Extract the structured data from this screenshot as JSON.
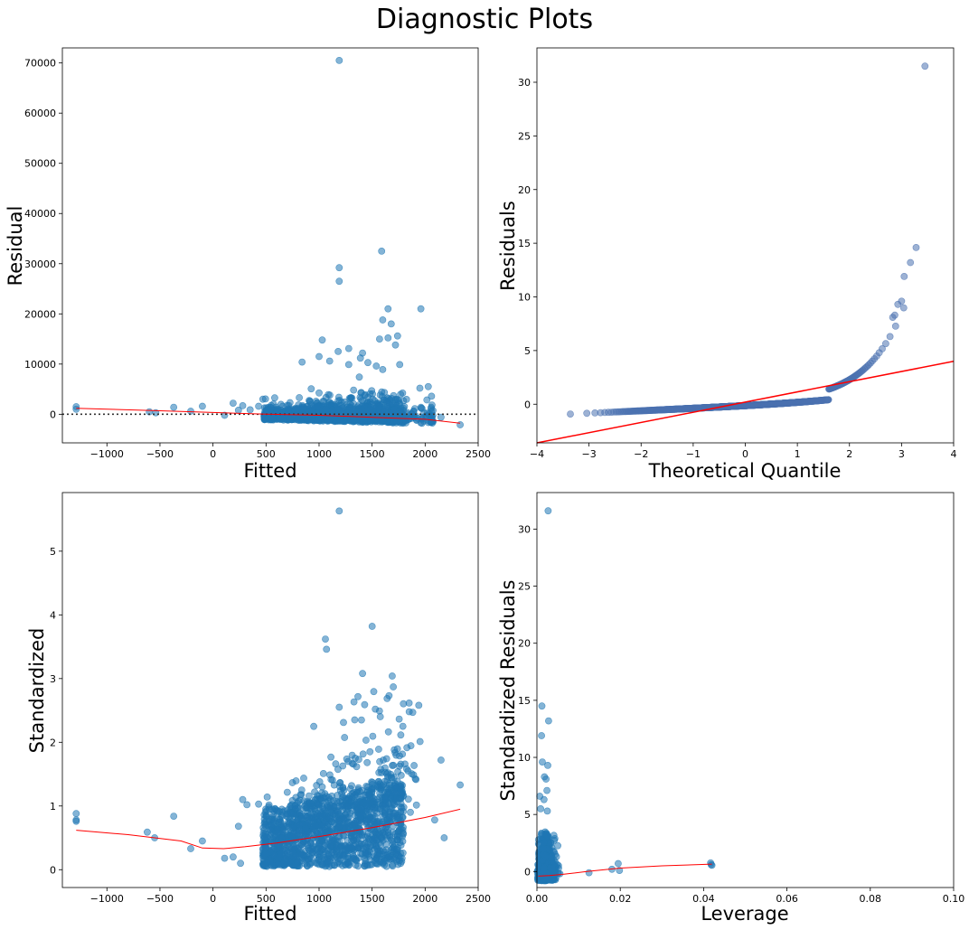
{
  "title": "Diagnostic Plots",
  "colors": {
    "points": "#1f77b4",
    "qq_points": "#4c72b0",
    "fit_line": "#ff0000",
    "zero_line": "#333333"
  },
  "chart_data": [
    {
      "id": "residuals-vs-fitted",
      "type": "scatter",
      "xlabel": "Fitted",
      "ylabel": "Residual",
      "xlim": [
        -1420,
        2500
      ],
      "ylim": [
        -5700,
        73000
      ],
      "xticks": [
        -1000,
        -500,
        0,
        500,
        1000,
        1500,
        2000,
        2500
      ],
      "yticks": [
        0,
        10000,
        20000,
        30000,
        40000,
        50000,
        60000,
        70000
      ],
      "reference_line": {
        "style": "dotted",
        "y": 0
      },
      "lowess": [
        [
          -1290,
          1200
        ],
        [
          -500,
          700
        ],
        [
          0,
          350
        ],
        [
          500,
          0
        ],
        [
          1000,
          -200
        ],
        [
          1500,
          -600
        ],
        [
          2000,
          -1000
        ],
        [
          2330,
          -1800
        ]
      ],
      "outliers": [
        [
          1190,
          70500
        ],
        [
          1590,
          32500
        ],
        [
          1190,
          29200
        ],
        [
          1190,
          26500
        ],
        [
          1650,
          21000
        ],
        [
          1960,
          21000
        ],
        [
          1600,
          18800
        ],
        [
          1680,
          18000
        ],
        [
          1650,
          15200
        ],
        [
          1740,
          15600
        ],
        [
          1030,
          14800
        ],
        [
          1570,
          15000
        ],
        [
          1280,
          13100
        ],
        [
          1720,
          13800
        ],
        [
          1410,
          12200
        ],
        [
          1180,
          12500
        ],
        [
          1000,
          11500
        ],
        [
          1390,
          11200
        ],
        [
          1100,
          10600
        ],
        [
          1460,
          10300
        ],
        [
          840,
          10400
        ],
        [
          1540,
          9600
        ],
        [
          1760,
          9900
        ],
        [
          1600,
          8900
        ],
        [
          1280,
          9900
        ]
      ],
      "extra_points": [
        [
          -1290,
          1500
        ],
        [
          -1290,
          1000
        ],
        [
          -600,
          500
        ],
        [
          -540,
          300
        ],
        [
          -370,
          1400
        ],
        [
          -210,
          600
        ],
        [
          -100,
          1600
        ],
        [
          110,
          -200
        ],
        [
          190,
          2200
        ],
        [
          240,
          800
        ],
        [
          280,
          1700
        ],
        [
          350,
          900
        ],
        [
          430,
          1600
        ],
        [
          470,
          3000
        ],
        [
          2030,
          5500
        ],
        [
          2060,
          3600
        ],
        [
          2150,
          -600
        ],
        [
          2330,
          -2100
        ],
        [
          1950,
          5200
        ]
      ]
    },
    {
      "id": "qq-plot",
      "type": "scatter",
      "xlabel": "Theoretical Quantile",
      "ylabel": "Residuals",
      "xlim": [
        -4,
        4
      ],
      "ylim": [
        -3.6,
        33.2
      ],
      "xticks": [
        -4,
        -3,
        -2,
        -1,
        0,
        1,
        2,
        3,
        4
      ],
      "yticks": [
        0,
        5,
        10,
        15,
        20,
        25,
        30
      ],
      "reference_line": {
        "from": [
          -4,
          -3.6
        ],
        "to": [
          4,
          4
        ]
      },
      "tail_points": [
        [
          3.45,
          31.5
        ],
        [
          3.28,
          14.6
        ],
        [
          3.17,
          13.2
        ],
        [
          3.05,
          11.9
        ],
        [
          3.0,
          9.6
        ],
        [
          2.93,
          9.3
        ],
        [
          2.87,
          8.3
        ],
        [
          2.83,
          8.1
        ]
      ]
    },
    {
      "id": "scale-location",
      "type": "scatter",
      "xlabel": "Fitted",
      "ylabel": "Standardized",
      "xlim": [
        -1420,
        2500
      ],
      "ylim": [
        -0.28,
        5.92
      ],
      "xticks": [
        -1000,
        -500,
        0,
        500,
        1000,
        1500,
        2000,
        2500
      ],
      "yticks": [
        0,
        1,
        2,
        3,
        4,
        5
      ],
      "lowess": [
        [
          -1290,
          0.62
        ],
        [
          -800,
          0.55
        ],
        [
          -300,
          0.45
        ],
        [
          -100,
          0.34
        ],
        [
          100,
          0.33
        ],
        [
          300,
          0.36
        ],
        [
          600,
          0.42
        ],
        [
          1000,
          0.52
        ],
        [
          1500,
          0.66
        ],
        [
          2000,
          0.82
        ],
        [
          2330,
          0.95
        ]
      ],
      "outliers": [
        [
          1190,
          5.63
        ],
        [
          1500,
          3.82
        ],
        [
          1060,
          3.62
        ],
        [
          1070,
          3.46
        ],
        [
          1410,
          3.08
        ],
        [
          1690,
          3.04
        ],
        [
          1700,
          2.87
        ],
        [
          1660,
          2.73
        ],
        [
          1940,
          2.58
        ],
        [
          1190,
          2.55
        ],
        [
          1430,
          2.59
        ],
        [
          1530,
          2.52
        ],
        [
          1850,
          2.48
        ],
        [
          950,
          2.25
        ],
        [
          1230,
          2.31
        ],
        [
          1400,
          2.35
        ]
      ],
      "extra_points": [
        [
          -1290,
          0.88
        ],
        [
          -1290,
          0.78
        ],
        [
          -1290,
          0.76
        ],
        [
          -620,
          0.59
        ],
        [
          -550,
          0.5
        ],
        [
          -370,
          0.84
        ],
        [
          -210,
          0.33
        ],
        [
          -100,
          0.45
        ],
        [
          110,
          0.18
        ],
        [
          190,
          0.2
        ],
        [
          240,
          0.68
        ],
        [
          260,
          0.1
        ],
        [
          280,
          1.1
        ],
        [
          320,
          1.02
        ],
        [
          430,
          1.03
        ],
        [
          2150,
          1.72
        ],
        [
          2330,
          1.33
        ],
        [
          2090,
          0.78
        ],
        [
          2180,
          0.5
        ]
      ]
    },
    {
      "id": "residuals-vs-leverage",
      "type": "scatter",
      "xlabel": "Leverage",
      "ylabel": "Standardized Residuals",
      "xlim": [
        0,
        0.1
      ],
      "ylim": [
        -1.4,
        33.2
      ],
      "xticks": [
        0.0,
        0.02,
        0.04,
        0.06,
        0.08,
        0.1
      ],
      "xtick_labels": [
        "0.00",
        "0.02",
        "0.04",
        "0.06",
        "0.08",
        "0.10"
      ],
      "yticks": [
        0,
        5,
        10,
        15,
        20,
        25,
        30
      ],
      "lowess": [
        [
          0.0003,
          -0.4
        ],
        [
          0.003,
          -0.35
        ],
        [
          0.006,
          -0.25
        ],
        [
          0.012,
          0.0
        ],
        [
          0.02,
          0.3
        ],
        [
          0.03,
          0.5
        ],
        [
          0.042,
          0.65
        ]
      ],
      "outliers": [
        [
          0.0027,
          31.6
        ],
        [
          0.0012,
          14.5
        ],
        [
          0.0028,
          13.2
        ],
        [
          0.0011,
          11.9
        ],
        [
          0.0013,
          9.6
        ],
        [
          0.0026,
          9.3
        ],
        [
          0.0018,
          8.3
        ],
        [
          0.0022,
          8.1
        ],
        [
          0.0024,
          7.1
        ],
        [
          0.0007,
          6.6
        ],
        [
          0.0017,
          6.3
        ],
        [
          0.0025,
          5.3
        ],
        [
          0.0009,
          5.5
        ]
      ],
      "extra_points": [
        [
          0.0125,
          -0.1
        ],
        [
          0.018,
          0.2
        ],
        [
          0.0195,
          0.7
        ],
        [
          0.0198,
          0.1
        ],
        [
          0.0417,
          0.75
        ],
        [
          0.0418,
          0.6
        ],
        [
          0.042,
          0.55
        ],
        [
          0.0055,
          -0.2
        ],
        [
          0.0052,
          0.3
        ]
      ]
    }
  ]
}
